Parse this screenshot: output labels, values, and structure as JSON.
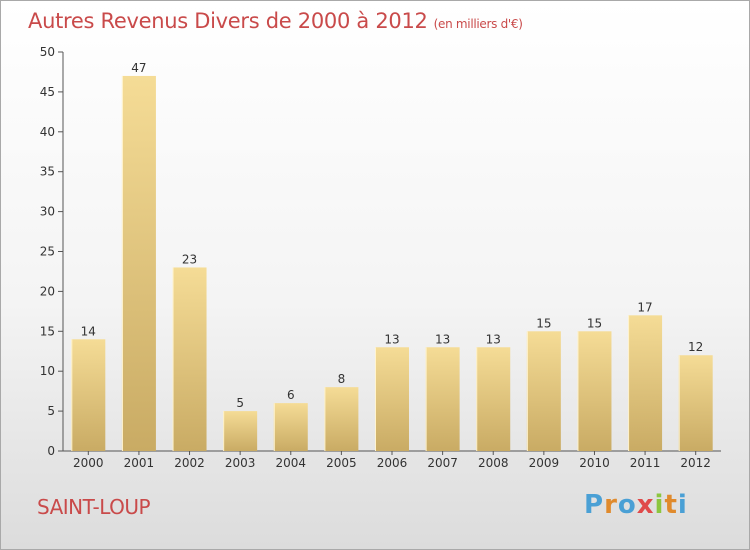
{
  "title": {
    "main": "Autres Revenus Divers de 2000 à 2012",
    "sub": "(en milliers d'€)"
  },
  "location": "SAINT-LOUP",
  "brand": {
    "letters": [
      "P",
      "r",
      "o",
      "x",
      "i",
      "t",
      "i"
    ],
    "colors": [
      "#4aa0d5",
      "#e08a2c",
      "#4aa0d5",
      "#e04a4a",
      "#8cc63f",
      "#e08a2c",
      "#4aa0d5"
    ]
  },
  "chart_data": {
    "type": "bar",
    "categories": [
      "2000",
      "2001",
      "2002",
      "2003",
      "2004",
      "2005",
      "2006",
      "2007",
      "2008",
      "2009",
      "2010",
      "2011",
      "2012"
    ],
    "values": [
      14,
      47,
      23,
      5,
      6,
      8,
      13,
      13,
      13,
      15,
      15,
      17,
      12
    ],
    "ylim": [
      0,
      50
    ],
    "yticks": [
      0,
      5,
      10,
      15,
      20,
      25,
      30,
      35,
      40,
      45,
      50
    ],
    "grid": false,
    "bar_color": "#e8cf8a"
  }
}
